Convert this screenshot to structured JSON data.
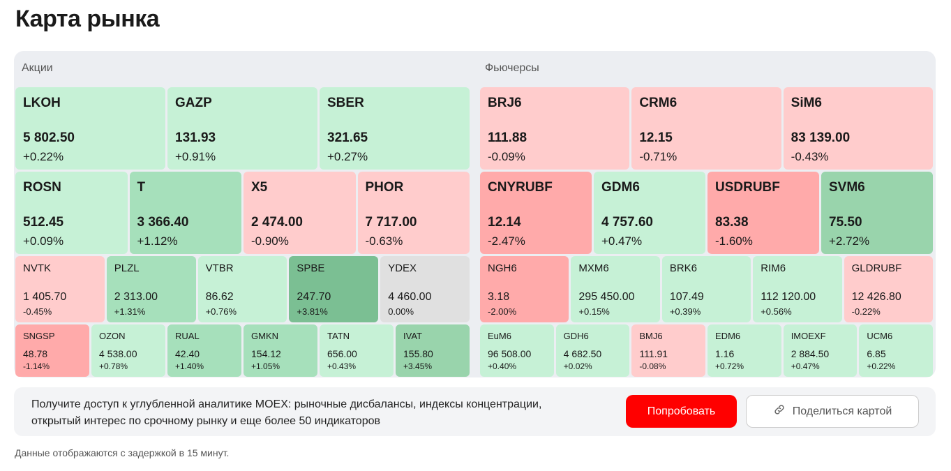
{
  "title": "Карта рынка",
  "stocks": {
    "label": "Акции",
    "rows": [
      {
        "size": "L",
        "tiles": [
          {
            "ticker": "LKOH",
            "price": "5 802.50",
            "change": "+0.22%",
            "tone": "lg"
          },
          {
            "ticker": "GAZP",
            "price": "131.93",
            "change": "+0.91%",
            "tone": "lg"
          },
          {
            "ticker": "SBER",
            "price": "321.65",
            "change": "+0.27%",
            "tone": "lg"
          }
        ]
      },
      {
        "size": "L",
        "tiles": [
          {
            "ticker": "ROSN",
            "price": "512.45",
            "change": "+0.09%",
            "tone": "lg"
          },
          {
            "ticker": "T",
            "price": "3 366.40",
            "change": "+1.12%",
            "tone": "mg"
          },
          {
            "ticker": "X5",
            "price": "2 474.00",
            "change": "-0.90%",
            "tone": "lr"
          },
          {
            "ticker": "PHOR",
            "price": "7 717.00",
            "change": "-0.63%",
            "tone": "lr"
          }
        ]
      },
      {
        "size": "M",
        "tiles": [
          {
            "ticker": "NVTK",
            "price": "1 405.70",
            "change": "-0.45%",
            "tone": "lr"
          },
          {
            "ticker": "PLZL",
            "price": "2 313.00",
            "change": "+1.31%",
            "tone": "mg"
          },
          {
            "ticker": "VTBR",
            "price": "86.62",
            "change": "+0.76%",
            "tone": "lg"
          },
          {
            "ticker": "SPBE",
            "price": "247.70",
            "change": "+3.81%",
            "tone": "dg"
          },
          {
            "ticker": "YDEX",
            "price": "4 460.00",
            "change": "0.00%",
            "tone": "gr"
          }
        ]
      },
      {
        "size": "S",
        "tiles": [
          {
            "ticker": "SNGSP",
            "price": "48.78",
            "change": "-1.14%",
            "tone": "r"
          },
          {
            "ticker": "OZON",
            "price": "4 538.00",
            "change": "+0.78%",
            "tone": "lg"
          },
          {
            "ticker": "RUAL",
            "price": "42.40",
            "change": "+1.40%",
            "tone": "mg"
          },
          {
            "ticker": "GMKN",
            "price": "154.12",
            "change": "+1.05%",
            "tone": "mg"
          },
          {
            "ticker": "TATN",
            "price": "656.00",
            "change": "+0.43%",
            "tone": "lg"
          },
          {
            "ticker": "IVAT",
            "price": "155.80",
            "change": "+3.45%",
            "tone": "g2"
          }
        ]
      }
    ]
  },
  "futures": {
    "label": "Фьючерсы",
    "rows": [
      {
        "size": "L",
        "tiles": [
          {
            "ticker": "BRJ6",
            "price": "111.88",
            "change": "-0.09%",
            "tone": "lr"
          },
          {
            "ticker": "CRM6",
            "price": "12.15",
            "change": "-0.71%",
            "tone": "lr"
          },
          {
            "ticker": "SiM6",
            "price": "83 139.00",
            "change": "-0.43%",
            "tone": "lr"
          }
        ]
      },
      {
        "size": "L",
        "tiles": [
          {
            "ticker": "CNYRUBF",
            "price": "12.14",
            "change": "-2.47%",
            "tone": "r"
          },
          {
            "ticker": "GDM6",
            "price": "4 757.60",
            "change": "+0.47%",
            "tone": "lg"
          },
          {
            "ticker": "USDRUBF",
            "price": "83.38",
            "change": "-1.60%",
            "tone": "r"
          },
          {
            "ticker": "SVM6",
            "price": "75.50",
            "change": "+2.72%",
            "tone": "g2"
          }
        ]
      },
      {
        "size": "M",
        "tiles": [
          {
            "ticker": "NGH6",
            "price": "3.18",
            "change": "-2.00%",
            "tone": "r"
          },
          {
            "ticker": "MXM6",
            "price": "295 450.00",
            "change": "+0.15%",
            "tone": "lg"
          },
          {
            "ticker": "BRK6",
            "price": "107.49",
            "change": "+0.39%",
            "tone": "lg"
          },
          {
            "ticker": "RIM6",
            "price": "112 120.00",
            "change": "+0.56%",
            "tone": "lg"
          },
          {
            "ticker": "GLDRUBF",
            "price": "12 426.80",
            "change": "-0.22%",
            "tone": "lr"
          }
        ]
      },
      {
        "size": "S",
        "tiles": [
          {
            "ticker": "EuM6",
            "price": "96 508.00",
            "change": "+0.40%",
            "tone": "lg"
          },
          {
            "ticker": "GDH6",
            "price": "4 682.50",
            "change": "+0.02%",
            "tone": "lg"
          },
          {
            "ticker": "BMJ6",
            "price": "111.91",
            "change": "-0.08%",
            "tone": "lr"
          },
          {
            "ticker": "EDM6",
            "price": "1.16",
            "change": "+0.72%",
            "tone": "lg"
          },
          {
            "ticker": "IMOEXF",
            "price": "2 884.50",
            "change": "+0.47%",
            "tone": "lg"
          },
          {
            "ticker": "UCM6",
            "price": "6.85",
            "change": "+0.22%",
            "tone": "lg"
          }
        ]
      }
    ]
  },
  "banner": {
    "text": "Получите доступ к углубленной аналитике MOEX: рыночные дисбалансы, индексы концентрации, открытый интерес по срочному рынку и еще более 50 индикаторов",
    "try_label": "Попробовать",
    "share_label": "Поделиться картой",
    "share_icon": "link-icon"
  },
  "note": "Данные отображаются с задержкой в 15 минут."
}
